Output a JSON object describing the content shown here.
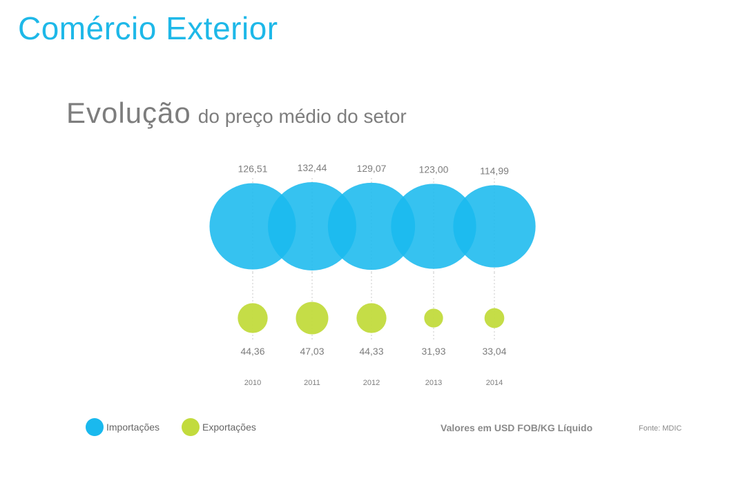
{
  "title": "Comércio Exterior",
  "subtitle": {
    "main": "Evolução",
    "rest": "do preço médio do setor"
  },
  "colors": {
    "imports": "#1ab9ee",
    "exports": "#c2db3d",
    "title": "#1eb8e8",
    "text": "#7d7d7d"
  },
  "chart_data": {
    "type": "bubble",
    "categories": [
      "2010",
      "2011",
      "2012",
      "2013",
      "2014"
    ],
    "series": [
      {
        "name": "Importações",
        "values": [
          126.51,
          132.44,
          129.07,
          123.0,
          114.99
        ],
        "labels": [
          "126,51",
          "132,44",
          "129,07",
          "123,00",
          "114,99"
        ]
      },
      {
        "name": "Exportações",
        "values": [
          44.36,
          47.03,
          44.33,
          31.93,
          33.04
        ],
        "labels": [
          "44,36",
          "47,03",
          "44,33",
          "31,93",
          "33,04"
        ]
      }
    ],
    "unit": "Valores em USD FOB/KG Líquido",
    "source": "Fonte: MDIC"
  },
  "legend": {
    "imports_label": "Importações",
    "exports_label": "Exportações"
  }
}
